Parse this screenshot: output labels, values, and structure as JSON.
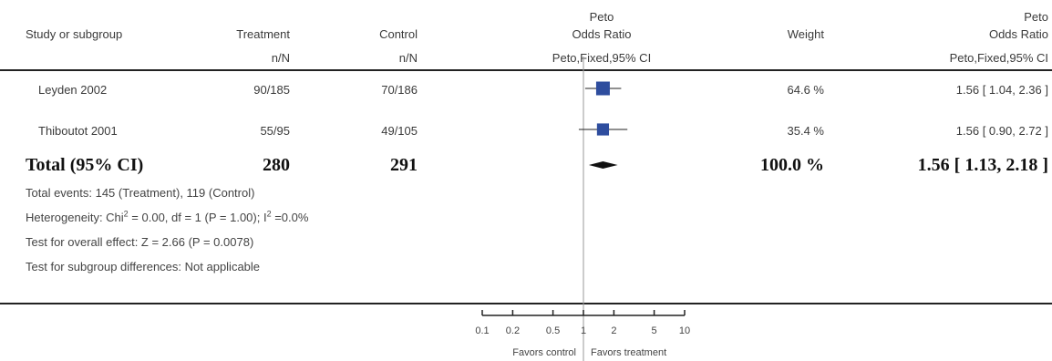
{
  "header": {
    "study": "Study or subgroup",
    "treatment": "Treatment",
    "control": "Control",
    "or_top": "Peto",
    "or_bottom": "Odds Ratio",
    "weight": "Weight",
    "or2_top": "Peto",
    "or2_bottom": "Odds Ratio",
    "treatment_sub": "n/N",
    "control_sub": "n/N",
    "method": "Peto,Fixed,95% CI",
    "method2": "Peto,Fixed,95% CI"
  },
  "studies": [
    {
      "name": "Leyden 2002",
      "treatment": "90/185",
      "control": "70/186",
      "weight": "64.6 %",
      "ci_text": "1.56 [ 1.04, 2.36 ]"
    },
    {
      "name": "Thiboutot 2001",
      "treatment": "55/95",
      "control": "49/105",
      "weight": "35.4 %",
      "ci_text": "1.56 [ 0.90, 2.72 ]"
    }
  ],
  "total": {
    "label": "Total (95% CI)",
    "treatment": "280",
    "control": "291",
    "weight": "100.0 %",
    "ci_text": "1.56 [ 1.13, 2.18 ]"
  },
  "footer": {
    "events": "Total events: 145 (Treatment), 119 (Control)",
    "heterogeneity_a": "Heterogeneity: Chi",
    "heterogeneity_sup1": "2",
    "heterogeneity_b": " = 0.00, df = 1 (P = 1.00); I",
    "heterogeneity_sup2": "2",
    "heterogeneity_c": " =0.0%",
    "overall": "Test for overall effect: Z = 2.66 (P = 0.0078)",
    "subgroup": "Test for subgroup differences: Not applicable"
  },
  "chart_data": {
    "type": "scatter",
    "scale": "log",
    "xlim": [
      0.1,
      10
    ],
    "ticks": [
      0.1,
      0.2,
      0.5,
      1,
      2,
      5,
      10
    ],
    "tick_labels": [
      "0.1",
      "0.2",
      "0.5",
      "1",
      "2",
      "5",
      "10"
    ],
    "null_value": 1,
    "favors_left": "Favors control",
    "favors_right": "Favors treatment",
    "studies": [
      {
        "name": "Leyden 2002",
        "or": 1.56,
        "lower": 1.04,
        "upper": 2.36,
        "weight": 64.6
      },
      {
        "name": "Thiboutot 2001",
        "or": 1.56,
        "lower": 0.9,
        "upper": 2.72,
        "weight": 35.4
      }
    ],
    "total": {
      "or": 1.56,
      "lower": 1.13,
      "upper": 2.18
    },
    "colors": {
      "box": "#2e4d9e",
      "line": "#222222",
      "axis": "#222222",
      "null_line": "#999999"
    }
  }
}
